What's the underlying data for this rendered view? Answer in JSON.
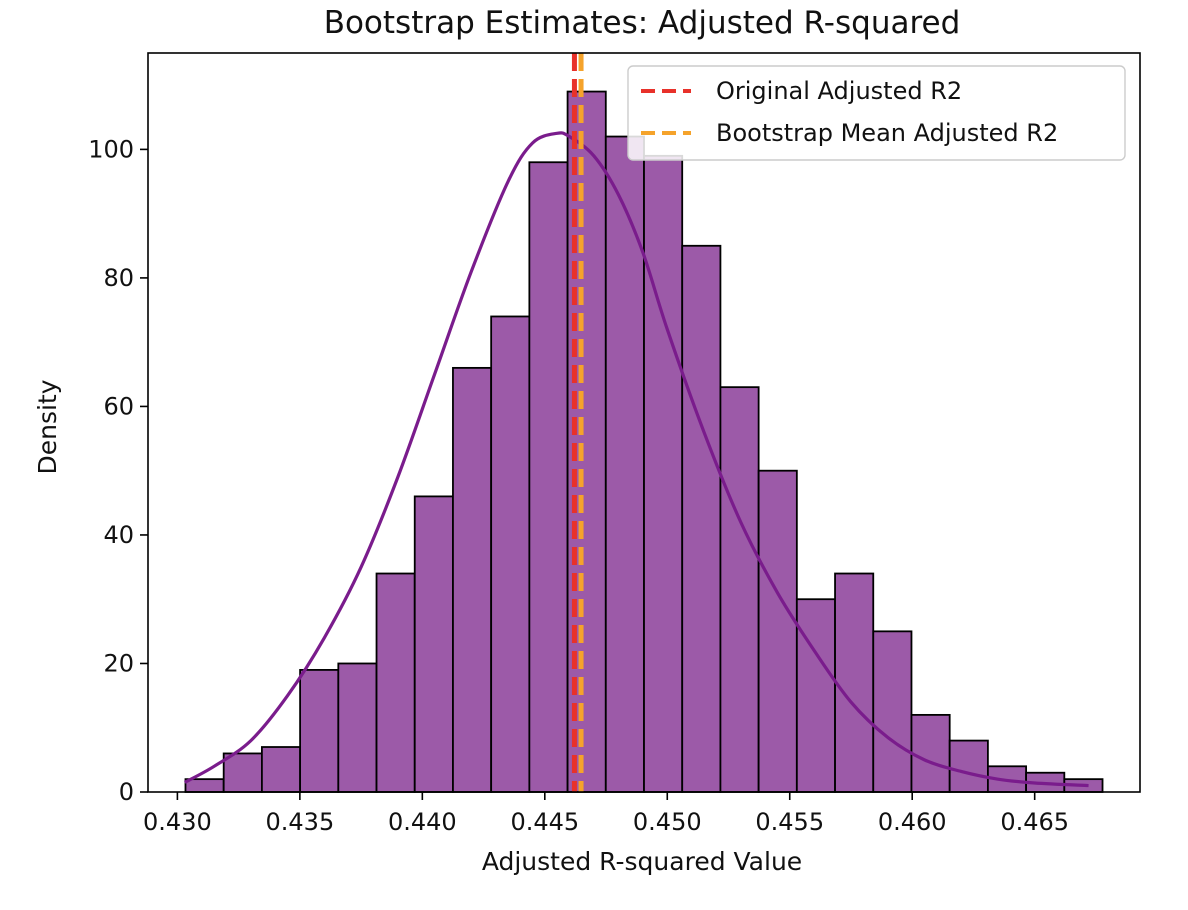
{
  "chart_data": {
    "type": "bar",
    "title": "Bootstrap Estimates: Adjusted R-squared",
    "xlabel": "Adjusted R-squared Value",
    "ylabel": "Density",
    "xlim": [
      0.4288,
      0.4693
    ],
    "ylim": [
      0,
      115
    ],
    "xticks": [
      0.43,
      0.435,
      0.44,
      0.445,
      0.45,
      0.455,
      0.46,
      0.465
    ],
    "xtick_labels": [
      "0.430",
      "0.435",
      "0.440",
      "0.445",
      "0.450",
      "0.455",
      "0.460",
      "0.465"
    ],
    "yticks": [
      0,
      20,
      40,
      60,
      80,
      100
    ],
    "ytick_labels": [
      "0",
      "20",
      "40",
      "60",
      "80",
      "100"
    ],
    "grid": false,
    "bins": {
      "edges": [
        0.43033,
        0.43189,
        0.43345,
        0.43501,
        0.43657,
        0.43813,
        0.43969,
        0.44125,
        0.44281,
        0.44437,
        0.44593,
        0.44749,
        0.44905,
        0.45061,
        0.45217,
        0.45373,
        0.45529,
        0.45685,
        0.45841,
        0.45997,
        0.46153,
        0.46309,
        0.46465,
        0.46621,
        0.46777
      ],
      "values": [
        2,
        6,
        7,
        19,
        20,
        34,
        46,
        66,
        74,
        98,
        109,
        102,
        99,
        85,
        63,
        50,
        30,
        34,
        25,
        12,
        8,
        4,
        3,
        2,
        1.3
      ]
    },
    "bar_color": "#9c5aa8",
    "bar_edge_color": "#000000",
    "kde": {
      "color": "#7a1c8c",
      "x": [
        0.4303,
        0.4315,
        0.433,
        0.4345,
        0.436,
        0.4375,
        0.439,
        0.4405,
        0.442,
        0.4435,
        0.4445,
        0.4455,
        0.446,
        0.447,
        0.448,
        0.449,
        0.45,
        0.4515,
        0.453,
        0.4545,
        0.456,
        0.4575,
        0.459,
        0.4605,
        0.462,
        0.4635,
        0.465,
        0.4672
      ],
      "y": [
        1.5,
        4,
        8,
        15,
        24,
        35,
        49,
        65,
        81,
        95,
        101,
        102.5,
        102,
        99,
        93,
        84,
        72,
        56,
        42,
        31,
        22,
        14,
        8.5,
        5,
        3.2,
        2,
        1.4,
        1
      ]
    },
    "vlines": [
      {
        "label": "Original Adjusted R2",
        "x": 0.44621,
        "color": "#e8312a",
        "style": "dashed"
      },
      {
        "label": "Bootstrap Mean Adjusted R2",
        "x": 0.44648,
        "color": "#f5a32b",
        "style": "dashed"
      }
    ],
    "legend": {
      "position": "upper-right"
    }
  }
}
